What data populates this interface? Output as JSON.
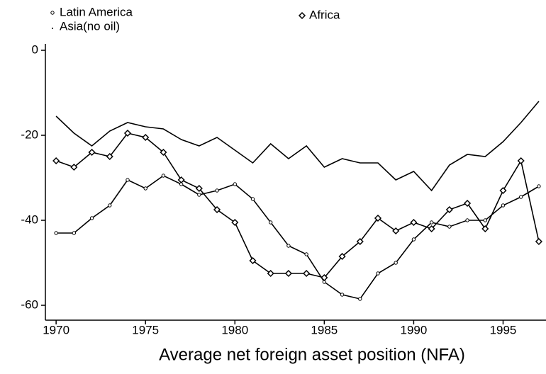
{
  "chart_data": {
    "type": "line",
    "x_label": "Average net foreign asset position (NFA)",
    "x": [
      1970,
      1971,
      1972,
      1973,
      1974,
      1975,
      1976,
      1977,
      1978,
      1979,
      1980,
      1981,
      1982,
      1983,
      1984,
      1985,
      1986,
      1987,
      1988,
      1989,
      1990,
      1991,
      1992,
      1993,
      1994,
      1995,
      1996,
      1997
    ],
    "series": [
      {
        "name": "Latin America",
        "color": "#000000",
        "marker": "circle",
        "values": [
          -43,
          -43,
          -39.5,
          -36.5,
          -30.5,
          -32.5,
          -29.5,
          -31.5,
          -34,
          -33,
          -31.5,
          -35,
          -40.5,
          -46,
          -48,
          -54.5,
          -57.5,
          -58.5,
          -52.5,
          -50,
          -44.5,
          -40.5,
          -41.5,
          -40,
          -40,
          -36.5,
          -34.5,
          -32
        ]
      },
      {
        "name": "Africa",
        "color": "#000000",
        "marker": "diamond",
        "values": [
          -26,
          -27.5,
          -24,
          -25,
          -19.5,
          -20.5,
          -24,
          -30.5,
          -32.5,
          -37.5,
          -40.5,
          -49.5,
          -52.5,
          -52.5,
          -52.5,
          -53.5,
          -48.5,
          -45,
          -39.5,
          -42.5,
          -40.5,
          -42,
          -37.5,
          -36,
          -42,
          -33,
          -26,
          -45
        ]
      },
      {
        "name": "Asia(no oil)",
        "color": "#000000",
        "marker": "none",
        "values": [
          -15.5,
          -19.5,
          -22.5,
          -19,
          -17,
          -18,
          -18.5,
          -21,
          -22.5,
          -20.5,
          -23.5,
          -26.5,
          -22,
          -25.5,
          -22.5,
          -27.5,
          -25.5,
          -26.5,
          -26.5,
          -30.5,
          -28.5,
          -33,
          -27,
          -24.5,
          -25,
          -21.5,
          -17,
          -12
        ]
      }
    ],
    "xlim": [
      1969.4,
      1997.4
    ],
    "xticks": [
      1970,
      1975,
      1980,
      1985,
      1990,
      1995
    ],
    "ylim": [
      -63.5,
      1.5
    ],
    "yticks": [
      0,
      -20,
      -40,
      -60
    ]
  }
}
